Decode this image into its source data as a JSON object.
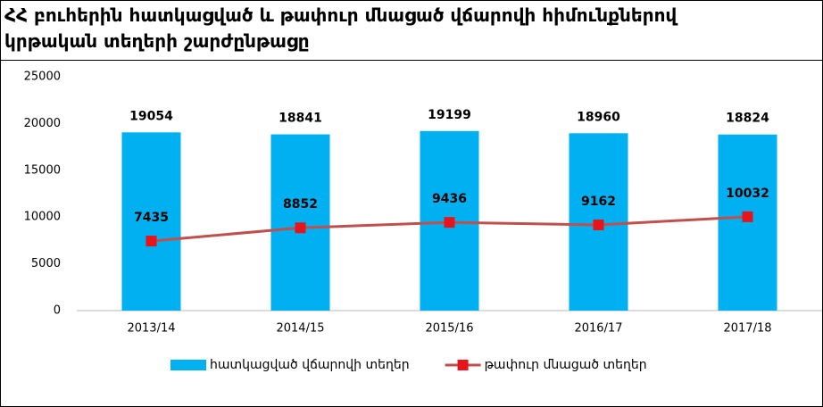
{
  "chart_data": {
    "type": "bar_line",
    "title": "ՀՀ բուհերին հատկացված և թափուր մնացած վճարովի հիմունքներով կրթական տեղերի շարժընթացը",
    "categories": [
      "2013/14",
      "2014/15",
      "2015/16",
      "2016/17",
      "2017/18"
    ],
    "series": [
      {
        "name": "հատկացված վճարովի տեղեր",
        "type": "bar",
        "color": "#00b0f0",
        "values": [
          19054,
          18841,
          19199,
          18960,
          18824
        ]
      },
      {
        "name": "թափուր մնացած տեղեր",
        "type": "line",
        "color": "#c0504d",
        "marker_color": "#e8141b",
        "values": [
          7435,
          8852,
          9436,
          9162,
          10032
        ]
      }
    ],
    "ylim": [
      0,
      25000
    ],
    "yticks": [
      0,
      5000,
      10000,
      15000,
      20000,
      25000
    ],
    "grid": false,
    "legend": "bottom"
  }
}
